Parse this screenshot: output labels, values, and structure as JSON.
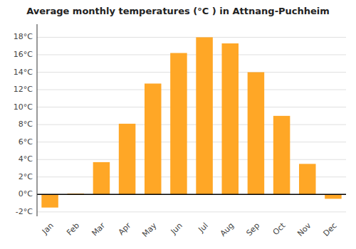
{
  "chart_data": {
    "type": "bar",
    "title": "Average monthly temperatures (°C ) in Attnang-Puchheim",
    "categories": [
      "Jan",
      "Feb",
      "Mar",
      "Apr",
      "May",
      "Jun",
      "Jul",
      "Aug",
      "Sep",
      "Oct",
      "Nov",
      "Dec"
    ],
    "values": [
      -1.5,
      0.1,
      3.7,
      8.1,
      12.7,
      16.2,
      18.0,
      17.3,
      14.0,
      9.0,
      3.5,
      -0.5
    ],
    "color": "#FFA726",
    "ylim": [
      -2.5,
      19.5
    ],
    "yticks": [
      {
        "value": -2,
        "label": "-2°C"
      },
      {
        "value": 0,
        "label": "0°C"
      },
      {
        "value": 2,
        "label": "2°C"
      },
      {
        "value": 4,
        "label": "4°C"
      },
      {
        "value": 6,
        "label": "6°C"
      },
      {
        "value": 8,
        "label": "8°C"
      },
      {
        "value": 10,
        "label": "10°C"
      },
      {
        "value": 12,
        "label": "12°C"
      },
      {
        "value": 14,
        "label": "14°C"
      },
      {
        "value": 16,
        "label": "16°C"
      },
      {
        "value": 18,
        "label": "18°C"
      }
    ],
    "grid": true
  }
}
